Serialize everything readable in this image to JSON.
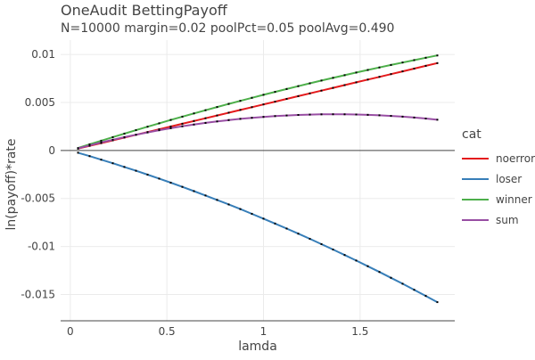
{
  "chart_data": {
    "type": "line",
    "title": "OneAudit BettingPayoff",
    "subtitle": "N=10000 margin=0.02 poolPct=0.05 poolAvg=0.490",
    "xlabel": "lamda",
    "ylabel": "ln(payoff)*rate",
    "xlim": [
      -0.05,
      1.99
    ],
    "ylim": [
      -0.017,
      0.0115
    ],
    "x_ticks": [
      0,
      0.5,
      1,
      1.5
    ],
    "x_tick_labels": [
      "0",
      "0.5",
      "1",
      "1.5"
    ],
    "y_ticks": [
      0.01,
      0.005,
      0,
      -0.005,
      -0.01,
      -0.015
    ],
    "y_tick_labels": [
      "0.01",
      "0.005",
      "0",
      "-0.005",
      "-0.01",
      "-0.015"
    ],
    "grid": true,
    "legend": {
      "title": "cat",
      "placement": "right"
    },
    "x": [
      0.04,
      0.1,
      0.16,
      0.22,
      0.28,
      0.34,
      0.4,
      0.46,
      0.52,
      0.58,
      0.64,
      0.7,
      0.76,
      0.82,
      0.88,
      0.94,
      1.0,
      1.06,
      1.12,
      1.18,
      1.24,
      1.3,
      1.36,
      1.42,
      1.48,
      1.54,
      1.6,
      1.66,
      1.72,
      1.78,
      1.84,
      1.9
    ],
    "series": [
      {
        "name": "noerror",
        "color": "#e41a1c",
        "values": [
          0.000192,
          0.000481,
          0.000769,
          0.001058,
          0.001346,
          0.001634,
          0.001922,
          0.002211,
          0.002499,
          0.002786,
          0.003074,
          0.003362,
          0.00365,
          0.003938,
          0.004225,
          0.004513,
          0.0048,
          0.005087,
          0.005375,
          0.005662,
          0.005949,
          0.006236,
          0.006523,
          0.00681,
          0.007097,
          0.007384,
          0.00767,
          0.007957,
          0.008244,
          0.00853,
          0.008817,
          0.009103
        ]
      },
      {
        "name": "loser",
        "color": "#377eb8",
        "values": [
          -0.000232,
          -0.000589,
          -0.000955,
          -0.00133,
          -0.001716,
          -0.002111,
          -0.002516,
          -0.002931,
          -0.003355,
          -0.003789,
          -0.004233,
          -0.004687,
          -0.00515,
          -0.005623,
          -0.006105,
          -0.006598,
          -0.0071,
          -0.007612,
          -0.008133,
          -0.008665,
          -0.009206,
          -0.009757,
          -0.010317,
          -0.010887,
          -0.011467,
          -0.012057,
          -0.012656,
          -0.013265,
          -0.013884,
          -0.014512,
          -0.015151,
          -0.015799
        ]
      },
      {
        "name": "winner",
        "color": "#4daf4a",
        "values": [
          0.000257,
          0.000639,
          0.001016,
          0.001388,
          0.001756,
          0.002119,
          0.002477,
          0.002831,
          0.00318,
          0.003524,
          0.003863,
          0.004198,
          0.004528,
          0.004853,
          0.005173,
          0.005489,
          0.0058,
          0.006106,
          0.006408,
          0.006705,
          0.006997,
          0.007285,
          0.007567,
          0.007845,
          0.008119,
          0.008387,
          0.008651,
          0.00891,
          0.009165,
          0.009415,
          0.00966,
          0.0099
        ]
      },
      {
        "name": "sum",
        "color": "#984ea3",
        "values": [
          0.000217,
          0.000531,
          0.000831,
          0.001116,
          0.001386,
          0.001642,
          0.001884,
          0.002111,
          0.002323,
          0.002521,
          0.002704,
          0.002873,
          0.003028,
          0.003167,
          0.003293,
          0.003404,
          0.0035,
          0.003582,
          0.003649,
          0.003702,
          0.00374,
          0.003764,
          0.003774,
          0.003768,
          0.003749,
          0.003714,
          0.003666,
          0.003602,
          0.003525,
          0.003432,
          0.003326,
          0.003204
        ]
      }
    ]
  }
}
